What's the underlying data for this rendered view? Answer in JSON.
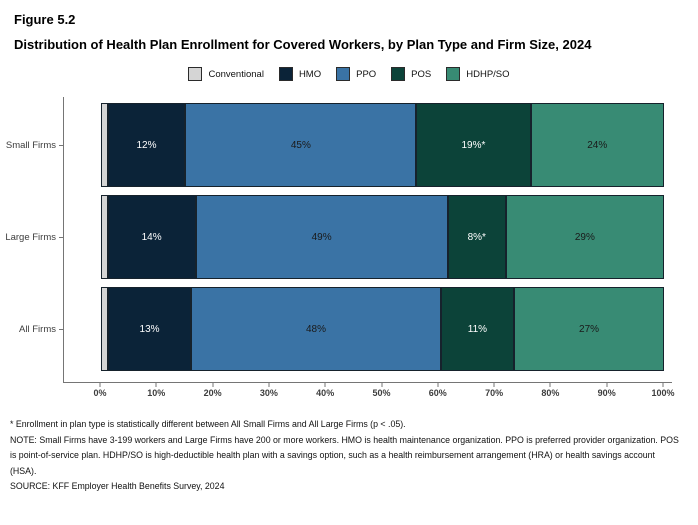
{
  "figure": {
    "label": "Figure 5.2",
    "title": "Distribution of Health Plan Enrollment for Covered Workers, by Plan Type and Firm Size, 2024"
  },
  "chart_data": {
    "type": "bar",
    "orientation": "horizontal",
    "stacked": true,
    "unit": "%",
    "grid": false,
    "legend_position": "top",
    "categories": [
      "Small Firms",
      "Large Firms",
      "All Firms"
    ],
    "series": [
      {
        "name": "Conventional",
        "color": "#d5d5d5",
        "label_color": "#1a1a1a",
        "values": [
          1,
          1,
          1
        ],
        "labels": [
          "",
          "",
          ""
        ]
      },
      {
        "name": "HMO",
        "color": "#0b2338",
        "label_color": "#ffffff",
        "values": [
          12,
          14,
          13
        ],
        "labels": [
          "12%",
          "14%",
          "13%"
        ]
      },
      {
        "name": "PPO",
        "color": "#3a73a5",
        "label_color": "#1a1a1a",
        "values": [
          45,
          49,
          48
        ],
        "labels": [
          "45%",
          "49%",
          "48%"
        ]
      },
      {
        "name": "POS",
        "color": "#0c4339",
        "label_color": "#ffffff",
        "values": [
          19,
          8,
          11
        ],
        "labels": [
          "19%*",
          "8%*",
          "11%"
        ]
      },
      {
        "name": "HDHP/SO",
        "color": "#388b74",
        "label_color": "#1a1a1a",
        "values": [
          24,
          29,
          27
        ],
        "labels": [
          "24%",
          "29%",
          "27%"
        ]
      }
    ],
    "x_ticks": [
      "0%",
      "10%",
      "20%",
      "30%",
      "40%",
      "50%",
      "60%",
      "70%",
      "80%",
      "90%",
      "100%"
    ],
    "xlim": [
      0,
      100
    ]
  },
  "footnotes": {
    "asterisk": "* Enrollment in plan type is statistically different between All Small Firms and All Large Firms (p < .05).",
    "note": "NOTE: Small Firms have 3-199 workers and Large Firms have 200 or more workers. HMO is health maintenance organization. PPO is preferred provider organization. POS is point-of-service plan. HDHP/SO is high-deductible health plan with a savings option, such as a health reimbursement arrangement (HRA) or health savings account (HSA).",
    "source": "SOURCE: KFF Employer Health Benefits Survey, 2024"
  }
}
